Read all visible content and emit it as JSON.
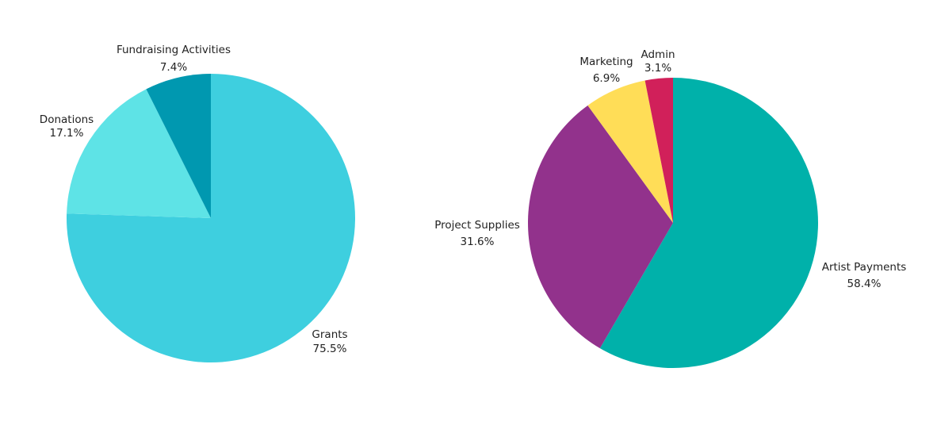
{
  "chart_data": [
    {
      "type": "pie",
      "start_angle_deg": 0,
      "direction": "clockwise",
      "slices": [
        {
          "label": "Grants",
          "value": 75.5,
          "percent_label": "75.5%",
          "color": "#3ecfdf"
        },
        {
          "label": "Donations",
          "value": 17.1,
          "percent_label": "17.1%",
          "color": "#5ee3e6"
        },
        {
          "label": "Fundraising Activities",
          "value": 7.4,
          "percent_label": "7.4%",
          "color": "#0098b0"
        }
      ]
    },
    {
      "type": "pie",
      "start_angle_deg": 0,
      "direction": "clockwise",
      "slices": [
        {
          "label": "Artist Payments",
          "value": 58.4,
          "percent_label": "58.4%",
          "color": "#00b1aa"
        },
        {
          "label": "Project Supplies",
          "value": 31.6,
          "percent_label": "31.6%",
          "color": "#92328c"
        },
        {
          "label": "Marketing",
          "value": 6.9,
          "percent_label": "6.9%",
          "color": "#ffdd57"
        },
        {
          "label": "Admin",
          "value": 3.1,
          "percent_label": "3.1%",
          "color": "#d1205a"
        }
      ]
    }
  ]
}
